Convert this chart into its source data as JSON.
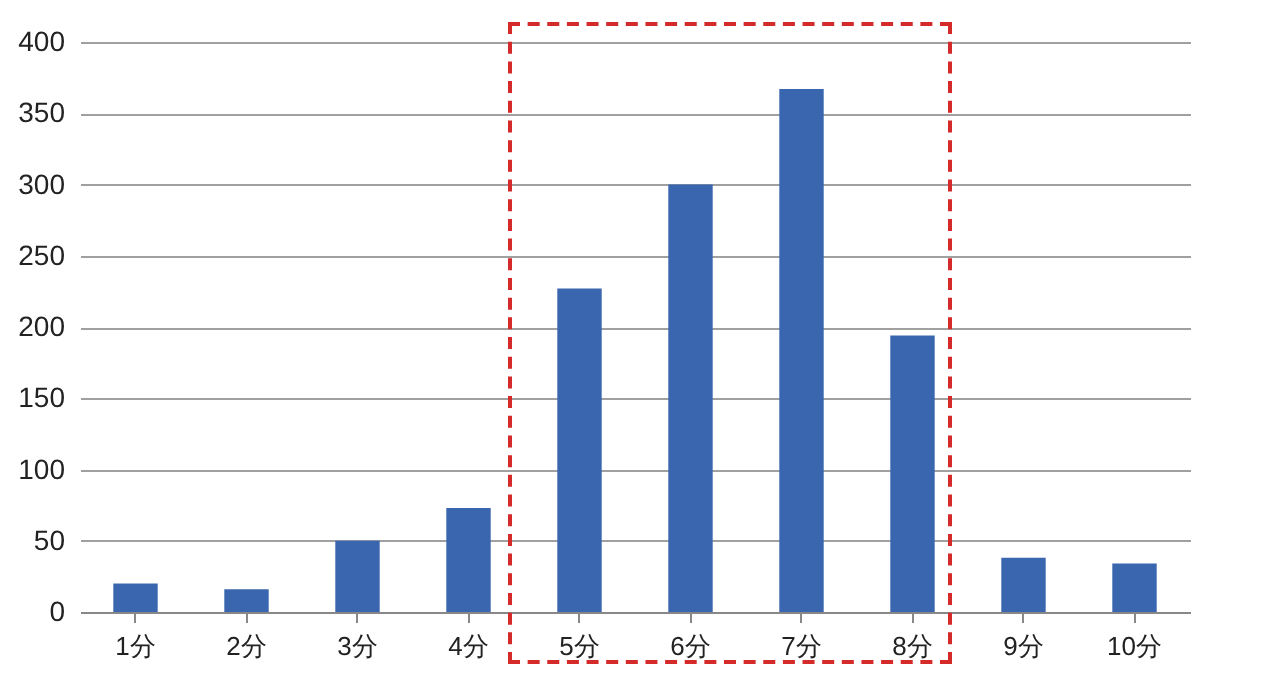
{
  "chart_data": {
    "type": "bar",
    "categories": [
      "1分",
      "2分",
      "3分",
      "4分",
      "5分",
      "6分",
      "7分",
      "8分",
      "9分",
      "10分"
    ],
    "values": [
      20,
      16,
      50,
      73,
      227,
      300,
      367,
      194,
      38,
      34
    ],
    "color": "#3a66b0",
    "ylim": [
      0,
      400
    ],
    "yticks": [
      0,
      50,
      100,
      150,
      200,
      250,
      300,
      350,
      400
    ],
    "grid": "y"
  }
}
